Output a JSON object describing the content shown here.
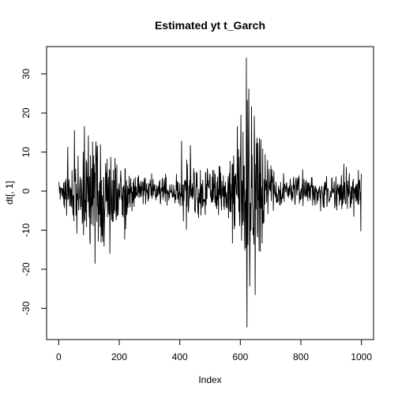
{
  "chart_data": {
    "type": "line",
    "title": "Estimated yt t_Garch",
    "xlabel": "Index",
    "ylabel": "dt[, 1]",
    "xlim": [
      -40,
      1040
    ],
    "ylim": [
      -38,
      37
    ],
    "xticks": [
      0,
      200,
      400,
      600,
      800,
      1000
    ],
    "yticks": [
      -30,
      -20,
      -10,
      0,
      10,
      20,
      30
    ],
    "xtick_labels": [
      "0",
      "200",
      "400",
      "600",
      "800",
      "1000"
    ],
    "ytick_labels": [
      "-30",
      "-20",
      "-10",
      "0",
      "10",
      "20",
      "30"
    ],
    "n_points": 1000,
    "series": [
      {
        "color": "#000000",
        "envelope_breakpoints": {
          "x": [
            1,
            25,
            60,
            100,
            150,
            200,
            260,
            330,
            380,
            420,
            480,
            540,
            580,
            610,
            625,
            640,
            660,
            700,
            760,
            820,
            900,
            960,
            1000
          ],
          "amplitude": [
            1.2,
            3,
            6,
            9,
            7,
            4,
            2,
            1.6,
            2,
            4,
            3,
            3,
            5,
            9,
            14,
            10,
            7,
            3,
            2,
            2,
            2,
            2.5,
            3
          ]
        },
        "spikes": [
          {
            "x": 30,
            "y": 11.3
          },
          {
            "x": 60,
            "y": -10.8
          },
          {
            "x": 82,
            "y": -11.2
          },
          {
            "x": 98,
            "y": 14.2
          },
          {
            "x": 103,
            "y": -12.3
          },
          {
            "x": 112,
            "y": 12.6
          },
          {
            "x": 120,
            "y": -18.5
          },
          {
            "x": 124,
            "y": 9.8
          },
          {
            "x": 131,
            "y": -12.8
          },
          {
            "x": 138,
            "y": 11.9
          },
          {
            "x": 160,
            "y": 8.2
          },
          {
            "x": 175,
            "y": -7.4
          },
          {
            "x": 186,
            "y": 8.4
          },
          {
            "x": 218,
            "y": -12.3
          },
          {
            "x": 406,
            "y": 12.8
          },
          {
            "x": 422,
            "y": -9.8
          },
          {
            "x": 436,
            "y": 7.1
          },
          {
            "x": 574,
            "y": -13.3
          },
          {
            "x": 600,
            "y": 7.6
          },
          {
            "x": 614,
            "y": -12.4
          },
          {
            "x": 620,
            "y": 34.1
          },
          {
            "x": 622,
            "y": -34.8
          },
          {
            "x": 627,
            "y": 13.7
          },
          {
            "x": 632,
            "y": -14.2
          },
          {
            "x": 637,
            "y": 21.6
          },
          {
            "x": 642,
            "y": -11.2
          },
          {
            "x": 646,
            "y": 19.2
          },
          {
            "x": 649,
            "y": -26.5
          },
          {
            "x": 655,
            "y": 13.6
          },
          {
            "x": 668,
            "y": 13.2
          },
          {
            "x": 672,
            "y": -13.3
          },
          {
            "x": 990,
            "y": 5.3
          },
          {
            "x": 998,
            "y": -10.2
          }
        ]
      }
    ]
  }
}
